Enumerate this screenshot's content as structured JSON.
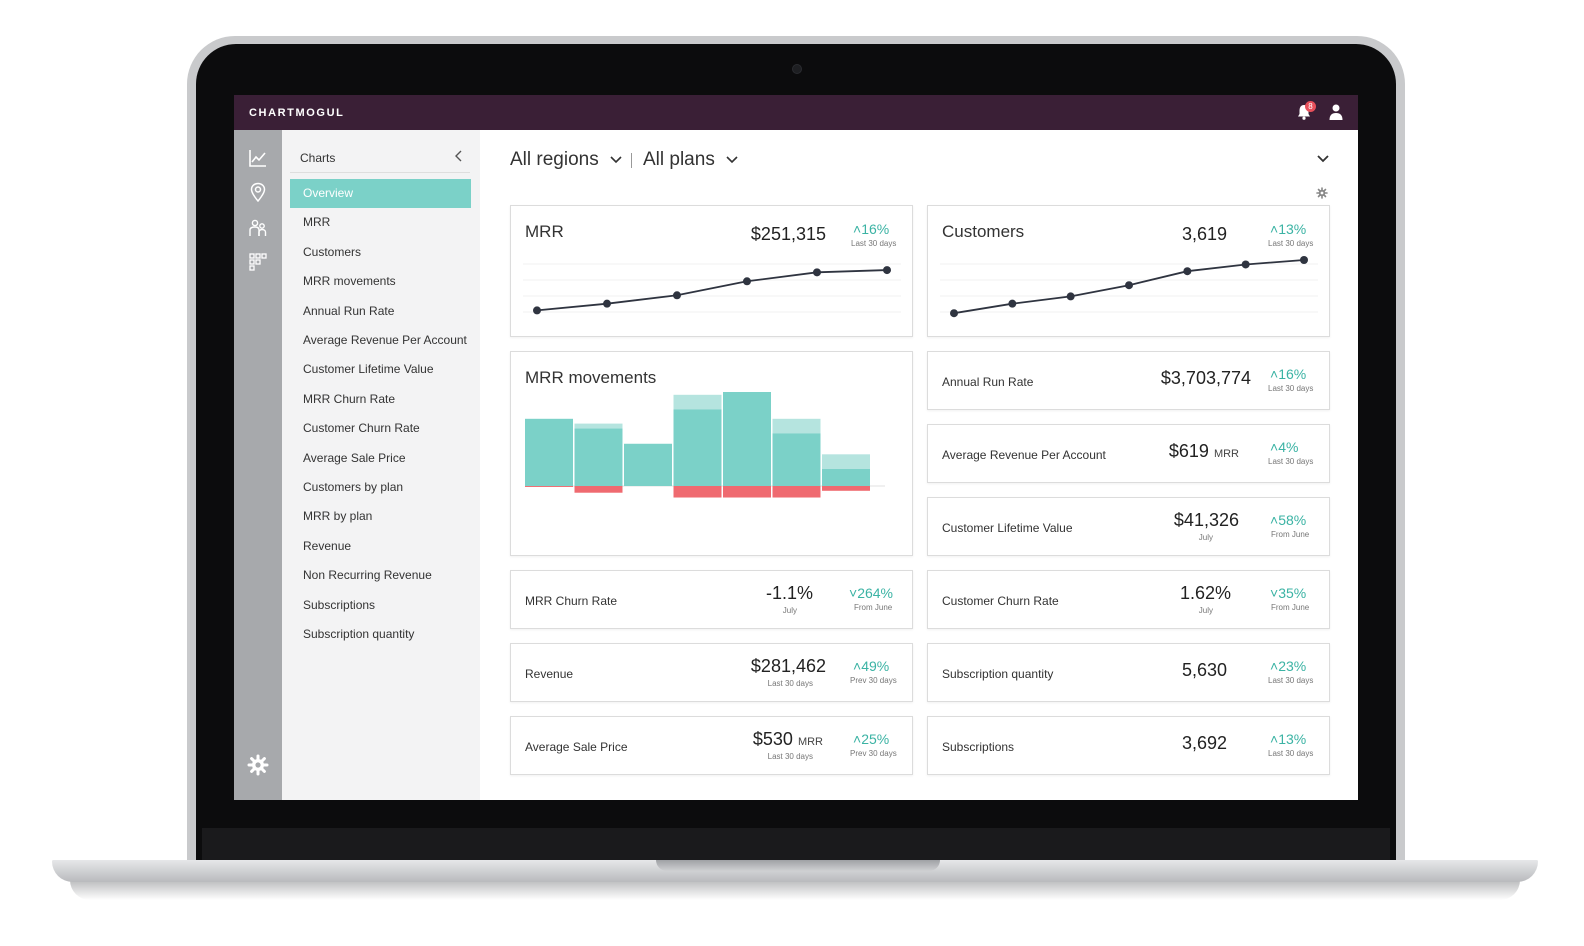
{
  "app": {
    "logo": "CHARTMOGUL",
    "notification_count": "8",
    "colors": {
      "topbar": "#3a1f36",
      "accent": "#7bd1c8",
      "negative": "#ef6a70",
      "positive_text": "#3bb3a4"
    }
  },
  "rail": {
    "icons": [
      "chart-line-icon",
      "location-pin-icon",
      "people-icon",
      "grid-icon"
    ],
    "bottom_icon": "gear-icon"
  },
  "sidebar": {
    "title": "Charts",
    "items": [
      {
        "label": "Overview",
        "active": true
      },
      {
        "label": "MRR"
      },
      {
        "label": "Customers"
      },
      {
        "label": "MRR movements"
      },
      {
        "label": "Annual Run Rate"
      },
      {
        "label": "Average Revenue Per Account"
      },
      {
        "label": "Customer Lifetime Value"
      },
      {
        "label": "MRR Churn Rate"
      },
      {
        "label": "Customer Churn Rate"
      },
      {
        "label": "Average Sale Price"
      },
      {
        "label": "Customers by plan"
      },
      {
        "label": "MRR by plan"
      },
      {
        "label": "Revenue"
      },
      {
        "label": "Non Recurring Revenue"
      },
      {
        "label": "Subscriptions"
      },
      {
        "label": "Subscription quantity"
      }
    ]
  },
  "filters": {
    "region": "All regions",
    "plan": "All plans"
  },
  "cards": {
    "mrr": {
      "title": "MRR",
      "value": "$251,315",
      "delta": "16%",
      "delta_dir": "up",
      "delta_label": "Last 30 days"
    },
    "customers": {
      "title": "Customers",
      "value": "3,619",
      "delta": "13%",
      "delta_dir": "up",
      "delta_label": "Last 30 days"
    },
    "mrr_movements": {
      "title": "MRR movements"
    },
    "annual_run_rate": {
      "title": "Annual Run Rate",
      "value": "$3,703,774",
      "delta": "16%",
      "delta_dir": "up",
      "delta_label": "Last 30 days"
    },
    "arpa": {
      "title": "Average Revenue Per Account",
      "value": "$619",
      "unit": "MRR",
      "delta": "4%",
      "delta_dir": "up",
      "delta_label": "Last 30 days"
    },
    "ltv": {
      "title": "Customer Lifetime Value",
      "value": "$41,326",
      "value_sub": "July",
      "delta": "58%",
      "delta_dir": "up",
      "delta_label": "From June"
    },
    "mrr_churn": {
      "title": "MRR Churn Rate",
      "value": "-1.1%",
      "value_sub": "July",
      "delta": "264%",
      "delta_dir": "down",
      "delta_label": "From June"
    },
    "customer_churn": {
      "title": "Customer Churn Rate",
      "value": "1.62%",
      "value_sub": "July",
      "delta": "35%",
      "delta_dir": "down",
      "delta_label": "From June"
    },
    "revenue": {
      "title": "Revenue",
      "value": "$281,462",
      "value_sub": "Last 30 days",
      "delta": "49%",
      "delta_dir": "up",
      "delta_label": "Prev 30 days"
    },
    "sub_quantity": {
      "title": "Subscription quantity",
      "value": "5,630",
      "delta": "23%",
      "delta_dir": "up",
      "delta_label": "Last 30 days"
    },
    "asp": {
      "title": "Average Sale Price",
      "value": "$530",
      "unit": "MRR",
      "value_sub": "Last 30 days",
      "delta": "25%",
      "delta_dir": "up",
      "delta_label": "Prev 30 days"
    },
    "subscriptions": {
      "title": "Subscriptions",
      "value": "3,692",
      "delta": "13%",
      "delta_dir": "up",
      "delta_label": "Last 30 days"
    }
  },
  "chart_data": [
    {
      "type": "line",
      "series": [
        {
          "values": [
            0.1,
            0.22,
            0.37,
            0.62,
            0.78,
            0.82
          ]
        }
      ]
    },
    {
      "type": "line",
      "series": [
        {
          "values": [
            0.05,
            0.22,
            0.35,
            0.55,
            0.8,
            0.92,
            1.0
          ]
        }
      ]
    },
    {
      "type": "bar",
      "stacked": true,
      "series": [
        {
          "values": [
            70,
            60,
            44,
            80,
            110,
            55,
            18
          ]
        },
        {
          "values": [
            0,
            5,
            0,
            15,
            10,
            15,
            15
          ]
        },
        {
          "values": [
            -1,
            -7,
            0,
            -12,
            -12,
            -12,
            -5
          ]
        }
      ]
    }
  ]
}
